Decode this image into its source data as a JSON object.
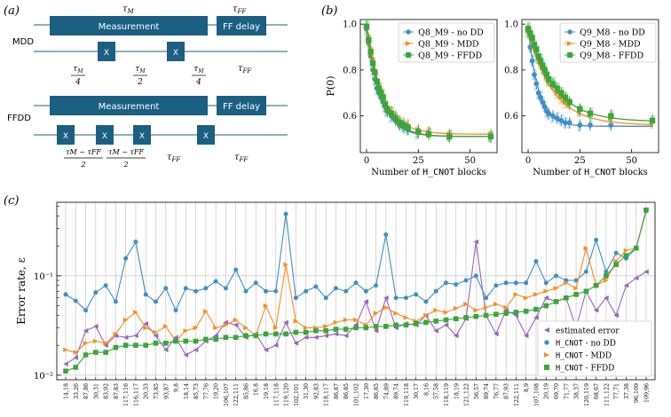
{
  "panels": {
    "a": "(a)",
    "b": "(b)",
    "c": "(c)"
  },
  "schematic": {
    "mdd": {
      "label": "MDD",
      "measurement": "Measurement",
      "ff_delay": "FF delay",
      "tau_m": "τ",
      "tau_m_sub": "M",
      "tau_ff": "τ",
      "tau_ff_sub": "FF",
      "pulse": "X",
      "frac_q": "4",
      "frac_h": "2"
    },
    "ffdd": {
      "label": "FFDD",
      "measurement": "Measurement",
      "ff_delay": "FF delay",
      "pulse": "X",
      "diff_num": "τM − τFF",
      "frac_h": "2"
    }
  },
  "colors": {
    "no_dd": "#3f8fc6",
    "mdd": "#fb8c22",
    "ffdd": "#3aa63a",
    "est": "#9467bd",
    "block": "#1b5f82"
  },
  "chart_data": [
    {
      "type": "scatter",
      "title": "",
      "xlabel": "Number of H_CNOT blocks",
      "ylabel": "P(0)",
      "xlim": [
        -3,
        63
      ],
      "ylim": [
        0.44,
        1.02
      ],
      "xticks": [
        0,
        25,
        50
      ],
      "yticks": [
        0.6,
        0.8,
        1.0
      ],
      "legend_position": "top-right",
      "series": [
        {
          "name": "Q8_M9 - no DD",
          "fit": {
            "a": 0.48,
            "b": 0.51,
            "k": 0.15
          },
          "x": [
            0,
            1,
            2,
            3,
            4,
            5,
            6,
            7,
            8,
            9,
            10,
            12,
            14,
            16,
            18,
            20,
            25,
            30,
            40,
            60
          ],
          "y": [
            0.98,
            0.92,
            0.86,
            0.8,
            0.76,
            0.72,
            0.7,
            0.68,
            0.66,
            0.64,
            0.62,
            0.6,
            0.58,
            0.56,
            0.55,
            0.54,
            0.53,
            0.52,
            0.51,
            0.51
          ]
        },
        {
          "name": "Q8_M9 - MDD",
          "fit": {
            "a": 0.47,
            "b": 0.52,
            "k": 0.13
          },
          "x": [
            0,
            1,
            2,
            3,
            4,
            5,
            6,
            7,
            8,
            9,
            10,
            12,
            14,
            16,
            18,
            20,
            25,
            30,
            40,
            60
          ],
          "y": [
            0.99,
            0.94,
            0.89,
            0.85,
            0.8,
            0.76,
            0.74,
            0.71,
            0.69,
            0.66,
            0.64,
            0.62,
            0.6,
            0.58,
            0.57,
            0.56,
            0.54,
            0.53,
            0.52,
            0.52
          ]
        },
        {
          "name": "Q8_M9 - FFDD",
          "fit": {
            "a": 0.48,
            "b": 0.51,
            "k": 0.14
          },
          "x": [
            0,
            1,
            2,
            3,
            4,
            5,
            6,
            7,
            8,
            9,
            10,
            12,
            14,
            16,
            18,
            20,
            25,
            30,
            40,
            60
          ],
          "y": [
            0.99,
            0.93,
            0.88,
            0.83,
            0.79,
            0.75,
            0.72,
            0.7,
            0.68,
            0.65,
            0.63,
            0.61,
            0.59,
            0.57,
            0.56,
            0.55,
            0.53,
            0.52,
            0.51,
            0.51
          ]
        }
      ]
    },
    {
      "type": "scatter",
      "title": "",
      "xlabel": "Number of H_CNOT blocks",
      "ylabel": "",
      "xlim": [
        -3,
        63
      ],
      "ylim": [
        0.44,
        1.02
      ],
      "xticks": [
        0,
        25,
        50
      ],
      "yticks": [
        0.6,
        0.8,
        1.0
      ],
      "legend_position": "top-right",
      "series": [
        {
          "name": "Q9_M8 - no DD",
          "fit": {
            "a": 0.43,
            "b": 0.555,
            "k": 0.2
          },
          "x": [
            0,
            1,
            2,
            3,
            4,
            5,
            6,
            7,
            8,
            9,
            10,
            12,
            14,
            16,
            18,
            20,
            25,
            30,
            40
          ],
          "y": [
            0.97,
            0.9,
            0.84,
            0.78,
            0.74,
            0.7,
            0.68,
            0.66,
            0.64,
            0.62,
            0.61,
            0.6,
            0.59,
            0.58,
            0.57,
            0.57,
            0.56,
            0.56,
            0.56
          ]
        },
        {
          "name": "Q9_M8 - MDD",
          "fit": {
            "a": 0.42,
            "b": 0.56,
            "k": 0.085
          },
          "x": [
            0,
            1,
            2,
            3,
            4,
            5,
            6,
            7,
            8,
            9,
            10,
            12,
            14,
            16,
            18,
            20,
            25,
            30,
            40,
            60
          ],
          "y": [
            0.98,
            0.96,
            0.93,
            0.9,
            0.88,
            0.85,
            0.83,
            0.81,
            0.79,
            0.77,
            0.75,
            0.73,
            0.7,
            0.68,
            0.66,
            0.65,
            0.62,
            0.61,
            0.59,
            0.57
          ]
        },
        {
          "name": "Q9_M8 - FFDD",
          "fit": {
            "a": 0.41,
            "b": 0.575,
            "k": 0.08
          },
          "x": [
            0,
            1,
            2,
            3,
            4,
            5,
            6,
            7,
            8,
            9,
            10,
            12,
            14,
            16,
            18,
            20,
            25,
            30,
            40,
            60
          ],
          "y": [
            0.98,
            0.96,
            0.94,
            0.91,
            0.89,
            0.86,
            0.84,
            0.82,
            0.8,
            0.78,
            0.76,
            0.74,
            0.72,
            0.7,
            0.68,
            0.66,
            0.63,
            0.61,
            0.6,
            0.58
          ]
        }
      ]
    },
    {
      "type": "line",
      "title": "",
      "xlabel": "",
      "ylabel": "Error rate, ε",
      "yscale": "log",
      "ylim": [
        0.009,
        0.55
      ],
      "legend_position": "bottom-right",
      "categories": [
        "14,18",
        "33,26",
        "87,86",
        "30,31",
        "83,92",
        "87,83",
        "117,116",
        "116,117",
        "20,33",
        "73,85",
        "93,87",
        "9,8",
        "18,14",
        "85,73",
        "77,76",
        "19,20",
        "106,107",
        "122,111",
        "85,86",
        "16,8",
        "19,18",
        "117,118",
        "119,120",
        "102,101",
        "31,30",
        "92,83",
        "118,117",
        "86,87",
        "86,85",
        "101,102",
        "17,30",
        "86,85",
        "74,89",
        "89,74",
        "119,118",
        "30,17",
        "8,16",
        "57,58",
        "118,119",
        "18,19",
        "121,122",
        "56,57",
        "89,74",
        "76,77",
        "87,93",
        "122,111",
        "8,9",
        "107,108",
        "20,19",
        "69,70",
        "71,77",
        "38,37",
        "120,119",
        "68,67",
        "111,122",
        "77,71",
        "37,38",
        "96,109",
        "109,96"
      ],
      "series": [
        {
          "name": "estimated error",
          "values": [
            0.013,
            0.015,
            0.028,
            0.031,
            0.02,
            0.025,
            0.024,
            0.025,
            0.033,
            0.025,
            0.018,
            0.024,
            0.016,
            0.018,
            0.022,
            0.025,
            0.034,
            0.032,
            0.024,
            0.026,
            0.018,
            0.02,
            0.034,
            0.021,
            0.024,
            0.024,
            0.025,
            0.026,
            0.025,
            0.032,
            0.055,
            0.028,
            0.06,
            0.03,
            0.033,
            0.032,
            0.04,
            0.028,
            0.032,
            0.025,
            0.037,
            0.22,
            0.04,
            0.026,
            0.045,
            0.04,
            0.025,
            0.038,
            0.06,
            0.055,
            0.06,
            0.03,
            0.07,
            0.045,
            0.06,
            0.04,
            0.08,
            0.095,
            0.11
          ]
        },
        {
          "name": "H_CNOT - no DD",
          "values": [
            0.065,
            0.056,
            0.045,
            0.068,
            0.08,
            0.055,
            0.15,
            0.22,
            0.065,
            0.055,
            0.075,
            0.045,
            0.075,
            0.07,
            0.075,
            0.088,
            0.075,
            0.115,
            0.07,
            0.085,
            0.07,
            0.07,
            0.42,
            0.06,
            0.07,
            0.078,
            0.06,
            0.075,
            0.07,
            0.085,
            0.07,
            0.08,
            0.26,
            0.06,
            0.06,
            0.065,
            0.055,
            0.07,
            0.085,
            0.082,
            0.09,
            0.1,
            0.06,
            0.08,
            0.085,
            0.085,
            0.085,
            0.14,
            0.085,
            0.1,
            0.09,
            0.09,
            0.11,
            0.23,
            0.11,
            0.17,
            0.15,
            0.19,
            0.45
          ]
        },
        {
          "name": "H_CNOT - MDD",
          "values": [
            0.018,
            0.017,
            0.021,
            0.022,
            0.021,
            0.026,
            0.036,
            0.043,
            0.03,
            0.027,
            0.031,
            0.022,
            0.028,
            0.03,
            0.044,
            0.03,
            0.032,
            0.036,
            0.03,
            0.025,
            0.05,
            0.03,
            0.13,
            0.035,
            0.03,
            0.03,
            0.031,
            0.034,
            0.036,
            0.036,
            0.032,
            0.042,
            0.048,
            0.042,
            0.038,
            0.035,
            0.04,
            0.045,
            0.043,
            0.047,
            0.052,
            0.045,
            0.048,
            0.052,
            0.048,
            0.065,
            0.06,
            0.065,
            0.07,
            0.075,
            0.085,
            0.075,
            0.19,
            0.08,
            0.09,
            0.14,
            0.18,
            0.19,
            0.46
          ]
        },
        {
          "name": "H_CNOT - FFDD",
          "values": [
            0.011,
            0.012,
            0.016,
            0.017,
            0.017,
            0.019,
            0.02,
            0.02,
            0.02,
            0.021,
            0.021,
            0.022,
            0.022,
            0.022,
            0.023,
            0.023,
            0.024,
            0.024,
            0.025,
            0.025,
            0.026,
            0.026,
            0.026,
            0.027,
            0.027,
            0.028,
            0.028,
            0.029,
            0.029,
            0.03,
            0.03,
            0.031,
            0.031,
            0.032,
            0.032,
            0.033,
            0.034,
            0.035,
            0.036,
            0.037,
            0.038,
            0.039,
            0.04,
            0.041,
            0.042,
            0.043,
            0.044,
            0.046,
            0.05,
            0.055,
            0.06,
            0.065,
            0.07,
            0.08,
            0.1,
            0.13,
            0.16,
            0.19,
            0.46
          ]
        }
      ]
    }
  ]
}
